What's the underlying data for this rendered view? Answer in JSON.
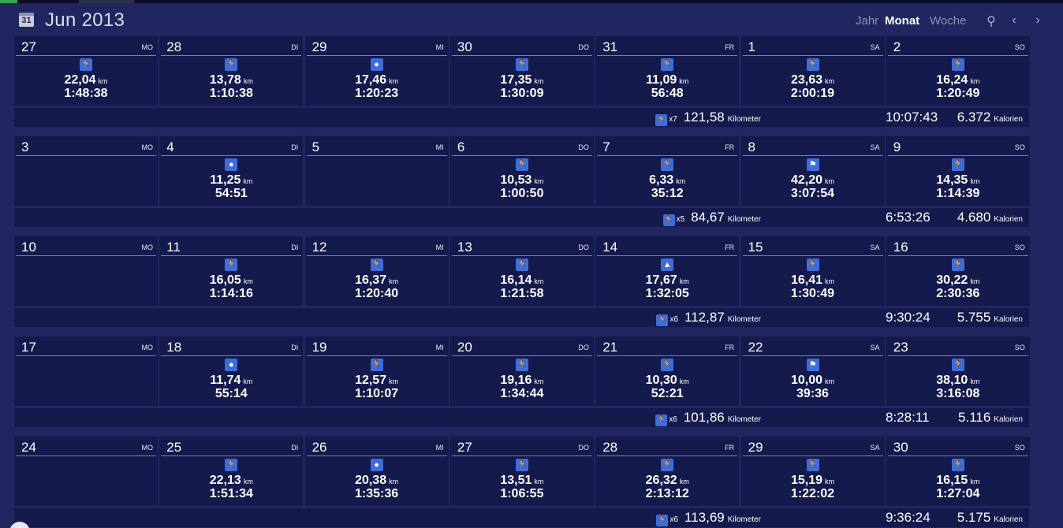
{
  "header": {
    "calendar_icon_day": "31",
    "title": "Jun 2013",
    "views": [
      "Jahr",
      "Monat",
      "Woche"
    ],
    "active_view": "Monat"
  },
  "icons": {
    "header": "calendar-icon",
    "search": "search-icon",
    "prev": "chevron-left-icon",
    "next": "chevron-right-icon"
  },
  "colors": {
    "background": "#1f2660",
    "cell": "#141a4c",
    "sport_icon": "#3d6ddb"
  },
  "weeks": [
    {
      "days": [
        {
          "num": "27",
          "name": "MO",
          "icon": "run-icon",
          "km": "22,04",
          "unit": "km",
          "time": "1:48:38"
        },
        {
          "num": "28",
          "name": "DI",
          "icon": "run-icon",
          "km": "13,78",
          "unit": "km",
          "time": "1:10:38"
        },
        {
          "num": "29",
          "name": "MI",
          "icon": "drop-icon",
          "km": "17,46",
          "unit": "km",
          "time": "1:20:23"
        },
        {
          "num": "30",
          "name": "DO",
          "icon": "run-icon",
          "km": "17,35",
          "unit": "km",
          "time": "1:30:09"
        },
        {
          "num": "31",
          "name": "FR",
          "icon": "run-icon",
          "km": "11,09",
          "unit": "km",
          "time": "56:48"
        },
        {
          "num": "1",
          "name": "SA",
          "icon": "run-icon",
          "km": "23,63",
          "unit": "km",
          "time": "2:00:19"
        },
        {
          "num": "2",
          "name": "SO",
          "icon": "run-icon",
          "km": "16,24",
          "unit": "km",
          "time": "1:20:49"
        }
      ],
      "summary": {
        "count": "x7",
        "distance": "121,58",
        "distance_unit": "Kilometer",
        "time": "10:07:43",
        "calories": "6.372",
        "calories_unit": "Kalorien"
      }
    },
    {
      "days": [
        {
          "num": "3",
          "name": "MO"
        },
        {
          "num": "4",
          "name": "DI",
          "icon": "drop-icon",
          "km": "11,25",
          "unit": "km",
          "time": "54:51"
        },
        {
          "num": "5",
          "name": "MI"
        },
        {
          "num": "6",
          "name": "DO",
          "icon": "run-icon",
          "km": "10,53",
          "unit": "km",
          "time": "1:00:50"
        },
        {
          "num": "7",
          "name": "FR",
          "icon": "run-icon",
          "km": "6,33",
          "unit": "km",
          "time": "35:12"
        },
        {
          "num": "8",
          "name": "SA",
          "icon": "flag-icon",
          "km": "42,20",
          "unit": "km",
          "time": "3:07:54"
        },
        {
          "num": "9",
          "name": "SO",
          "icon": "run-icon",
          "km": "14,35",
          "unit": "km",
          "time": "1:14:39"
        }
      ],
      "summary": {
        "count": "x5",
        "distance": "84,67",
        "distance_unit": "Kilometer",
        "time": "6:53:26",
        "calories": "4.680",
        "calories_unit": "Kalorien"
      }
    },
    {
      "days": [
        {
          "num": "10",
          "name": "MO"
        },
        {
          "num": "11",
          "name": "DI",
          "icon": "run-icon",
          "km": "16,05",
          "unit": "km",
          "time": "1:14:16"
        },
        {
          "num": "12",
          "name": "MI",
          "icon": "run-icon",
          "km": "16,37",
          "unit": "km",
          "time": "1:20:40"
        },
        {
          "num": "13",
          "name": "DO",
          "icon": "run-icon",
          "km": "16,14",
          "unit": "km",
          "time": "1:21:58"
        },
        {
          "num": "14",
          "name": "FR",
          "icon": "mountain-icon",
          "km": "17,67",
          "unit": "km",
          "time": "1:32:05"
        },
        {
          "num": "15",
          "name": "SA",
          "icon": "run-icon",
          "km": "16,41",
          "unit": "km",
          "time": "1:30:49"
        },
        {
          "num": "16",
          "name": "SO",
          "icon": "run-icon",
          "km": "30,22",
          "unit": "km",
          "time": "2:30:36"
        }
      ],
      "summary": {
        "count": "x6",
        "distance": "112,87",
        "distance_unit": "Kilometer",
        "time": "9:30:24",
        "calories": "5.755",
        "calories_unit": "Kalorien"
      }
    },
    {
      "days": [
        {
          "num": "17",
          "name": "MO"
        },
        {
          "num": "18",
          "name": "DI",
          "icon": "drop-icon",
          "km": "11,74",
          "unit": "km",
          "time": "55:14"
        },
        {
          "num": "19",
          "name": "MI",
          "icon": "run-icon",
          "km": "12,57",
          "unit": "km",
          "time": "1:10:07"
        },
        {
          "num": "20",
          "name": "DO",
          "icon": "run-icon",
          "km": "19,16",
          "unit": "km",
          "time": "1:34:44"
        },
        {
          "num": "21",
          "name": "FR",
          "icon": "run-icon",
          "km": "10,30",
          "unit": "km",
          "time": "52:21"
        },
        {
          "num": "22",
          "name": "SA",
          "icon": "flag-icon",
          "km": "10,00",
          "unit": "km",
          "time": "39:36"
        },
        {
          "num": "23",
          "name": "SO",
          "icon": "run-icon",
          "km": "38,10",
          "unit": "km",
          "time": "3:16:08"
        }
      ],
      "summary": {
        "count": "x6",
        "distance": "101,86",
        "distance_unit": "Kilometer",
        "time": "8:28:11",
        "calories": "5.116",
        "calories_unit": "Kalorien"
      }
    },
    {
      "days": [
        {
          "num": "24",
          "name": "MO"
        },
        {
          "num": "25",
          "name": "DI",
          "icon": "run-icon",
          "km": "22,13",
          "unit": "km",
          "time": "1:51:34"
        },
        {
          "num": "26",
          "name": "MI",
          "icon": "drop-icon",
          "km": "20,38",
          "unit": "km",
          "time": "1:35:36"
        },
        {
          "num": "27",
          "name": "DO",
          "icon": "run-icon",
          "km": "13,51",
          "unit": "km",
          "time": "1:06:55"
        },
        {
          "num": "28",
          "name": "FR",
          "icon": "run-icon",
          "km": "26,32",
          "unit": "km",
          "time": "2:13:12"
        },
        {
          "num": "29",
          "name": "SA",
          "icon": "run-icon",
          "km": "15,19",
          "unit": "km",
          "time": "1:22:02"
        },
        {
          "num": "30",
          "name": "SO",
          "icon": "run-icon",
          "km": "16,15",
          "unit": "km",
          "time": "1:27:04"
        }
      ],
      "summary": {
        "count": "x6",
        "distance": "113,69",
        "distance_unit": "Kilometer",
        "time": "9:36:24",
        "calories": "5.175",
        "calories_unit": "Kalorien"
      }
    }
  ]
}
